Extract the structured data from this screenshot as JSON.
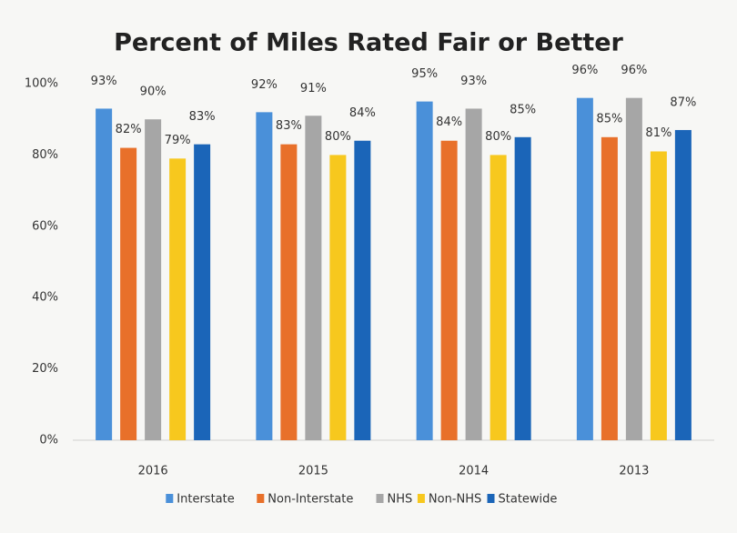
{
  "chart_data": {
    "type": "bar",
    "title": "Percent of Miles Rated Fair or Better",
    "categories": [
      "2016",
      "2015",
      "2014",
      "2013"
    ],
    "series": [
      {
        "name": "Interstate",
        "color": "#4a90d9",
        "values": [
          93,
          92,
          95,
          96
        ],
        "value_labels": [
          "93%",
          "92%",
          "95%",
          "96%"
        ]
      },
      {
        "name": "Non-Interstate",
        "color": "#e8702a",
        "values": [
          82,
          83,
          84,
          85
        ],
        "value_labels": [
          "82%",
          "83%",
          "84%",
          "85%"
        ]
      },
      {
        "name": "NHS",
        "color": "#a6a6a6",
        "values": [
          90,
          91,
          93,
          96
        ],
        "value_labels": [
          "90%",
          "91%",
          "93%",
          "96%"
        ]
      },
      {
        "name": "Non-NHS",
        "color": "#f7c81e",
        "values": [
          79,
          80,
          80,
          81
        ],
        "value_labels": [
          "79%",
          "80%",
          "80%",
          "81%"
        ]
      },
      {
        "name": "Statewide",
        "color": "#1b65b8",
        "values": [
          83,
          84,
          85,
          87
        ],
        "value_labels": [
          "83%",
          "84%",
          "85%",
          "87%"
        ]
      }
    ],
    "ylim": [
      0,
      100
    ],
    "yticks": [
      {
        "value": 0,
        "label": "0%"
      },
      {
        "value": 20,
        "label": "20%"
      },
      {
        "value": 40,
        "label": "40%"
      },
      {
        "value": 60,
        "label": "60%"
      },
      {
        "value": 80,
        "label": "80%"
      },
      {
        "value": 100,
        "label": "100%"
      }
    ],
    "grid": false,
    "legend": "bottom"
  }
}
